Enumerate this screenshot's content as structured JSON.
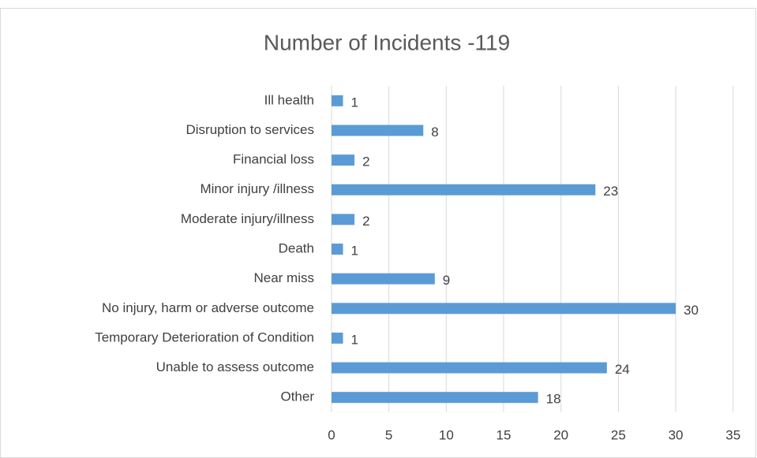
{
  "chart_data": {
    "type": "bar",
    "orientation": "horizontal",
    "title": "Number of Incidents -119",
    "categories": [
      "Ill health",
      "Disruption to services",
      "Financial loss",
      "Minor injury /illness",
      "Moderate injury/illness",
      "Death",
      "Near miss",
      "No injury, harm or adverse outcome",
      "Temporary Deterioration of Condition",
      "Unable to assess outcome",
      "Other"
    ],
    "values": [
      1,
      8,
      2,
      23,
      2,
      1,
      9,
      30,
      1,
      24,
      18
    ],
    "color": "#5b9bd5",
    "xlim": [
      0,
      35
    ],
    "xticks": [
      0,
      5,
      10,
      15,
      20,
      25,
      30,
      35
    ],
    "grid": true
  }
}
